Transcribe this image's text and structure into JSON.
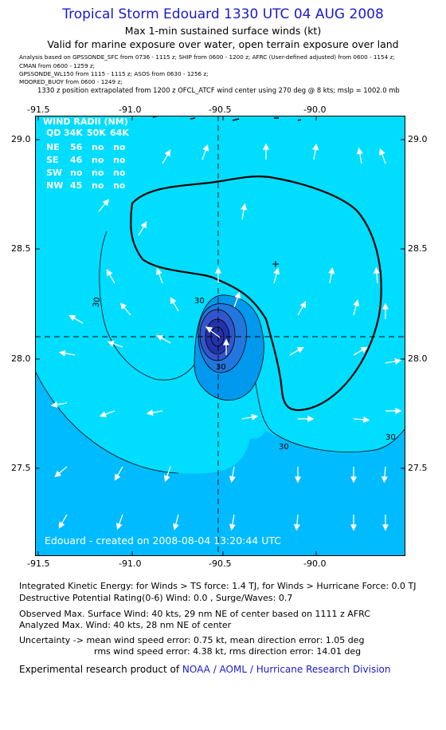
{
  "header": {
    "title": "Tropical Storm Edouard 1330 UTC 04 AUG 2008",
    "subtitle1": "Max 1-min sustained surface winds (kt)",
    "subtitle2": "Valid for marine exposure over water, open terrain exposure over land"
  },
  "analysis_lines": [
    "Analysis based on  GPSSONDE_SFC from 0736 - 1115 z;  SHIP from 0600 - 1200 z;  AFRC (User-defined adjusted) from 0600 - 1154 z;",
    "CMAN from 0600 - 1259 z;",
    "GPSSONDE_WL150 from 1115 - 1115 z;  ASOS from 0630 - 1256 z;",
    "MOORED_BUOY from 0600 - 1249 z;"
  ],
  "position_note": "1330 z position extrapolated from 1200 z OFCL_ATCF wind center using 270 deg @ 8 kts; mslp = 1002.0 mb",
  "axes": {
    "x_ticks": [
      "-91.5",
      "-91.0",
      "-90.5",
      "-90.0"
    ],
    "y_ticks": [
      "29.0",
      "28.5",
      "28.0",
      "27.5"
    ]
  },
  "wind_radii": {
    "title": "WIND RADII (NM)",
    "header": [
      "QD",
      "34K",
      "50K",
      "64K"
    ],
    "rows": [
      {
        "q": "NE",
        "k34": "56",
        "k50": "no",
        "k64": "no"
      },
      {
        "q": "SE",
        "k34": "46",
        "k50": "no",
        "k64": "no"
      },
      {
        "q": "SW",
        "k34": "no",
        "k50": "no",
        "k64": "no"
      },
      {
        "q": "NW",
        "k34": "45",
        "k50": "no",
        "k64": "no"
      }
    ]
  },
  "contour_labels": [
    "30",
    "30",
    "30",
    "30",
    "30"
  ],
  "map_caption": "Edouard - created on 2008-08-04 13:20:44 UTC",
  "colors": {
    "title_blue": "#1a1acc",
    "light_cyan": "#00ddff",
    "mid_cyan": "#00bbff",
    "blue_1": "#0099ee",
    "blue_2": "#2277dd",
    "blue_3": "#3355cc",
    "blue_4": "#2233aa"
  },
  "info": {
    "kinetic": "Integrated Kinetic Energy:  for Winds > TS force: 1.4 TJ,  for Winds > Hurricane Force: 0.0 TJ",
    "destructive": "Destructive Potential Rating(0-6)   Wind: 0.0 , Surge/Waves: 0.7",
    "observed": "Observed Max. Surface Wind: 40 kts, 29 nm NE of center based on 1111 z AFRC",
    "analyzed": "Analyzed Max. Wind: 40 kts, 28 nm NE of center",
    "uncert1": "Uncertainty -> mean wind speed error: 0.75 kt,   mean direction error: 1.05 deg",
    "uncert2": "rms wind speed error: 4.38 kt,   rms direction error: 14.01 deg",
    "credit_prefix": "Experimental research product of ",
    "credit_link": "NOAA / AOML / Hurricane Research Division"
  }
}
